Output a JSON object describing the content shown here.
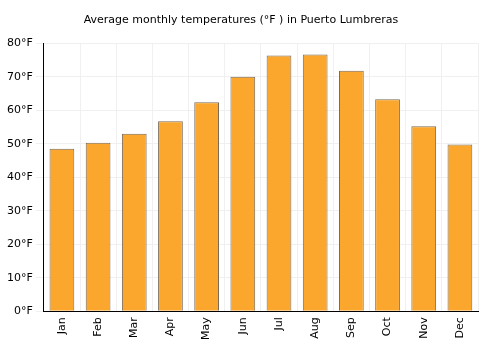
{
  "chart_data": {
    "type": "bar",
    "title": "Average monthly temperatures (°F ) in Puerto Lumbreras",
    "categories": [
      "Jan",
      "Feb",
      "Mar",
      "Apr",
      "May",
      "Jun",
      "Jul",
      "Aug",
      "Sep",
      "Oct",
      "Nov",
      "Dec"
    ],
    "values": [
      48.5,
      50.3,
      53.0,
      56.7,
      62.4,
      70.0,
      76.3,
      76.6,
      71.8,
      63.3,
      55.2,
      49.8
    ],
    "color": "#fba72e",
    "ylim": [
      0,
      80
    ],
    "yticks": [
      {
        "value": 0,
        "label": "0°F"
      },
      {
        "value": 10,
        "label": "10°F"
      },
      {
        "value": 20,
        "label": "20°F"
      },
      {
        "value": 30,
        "label": "30°F"
      },
      {
        "value": 40,
        "label": "40°F"
      },
      {
        "value": 50,
        "label": "50°F"
      },
      {
        "value": 60,
        "label": "60°F"
      },
      {
        "value": 70,
        "label": "70°F"
      },
      {
        "value": 80,
        "label": "80°F"
      }
    ],
    "grid": true
  }
}
